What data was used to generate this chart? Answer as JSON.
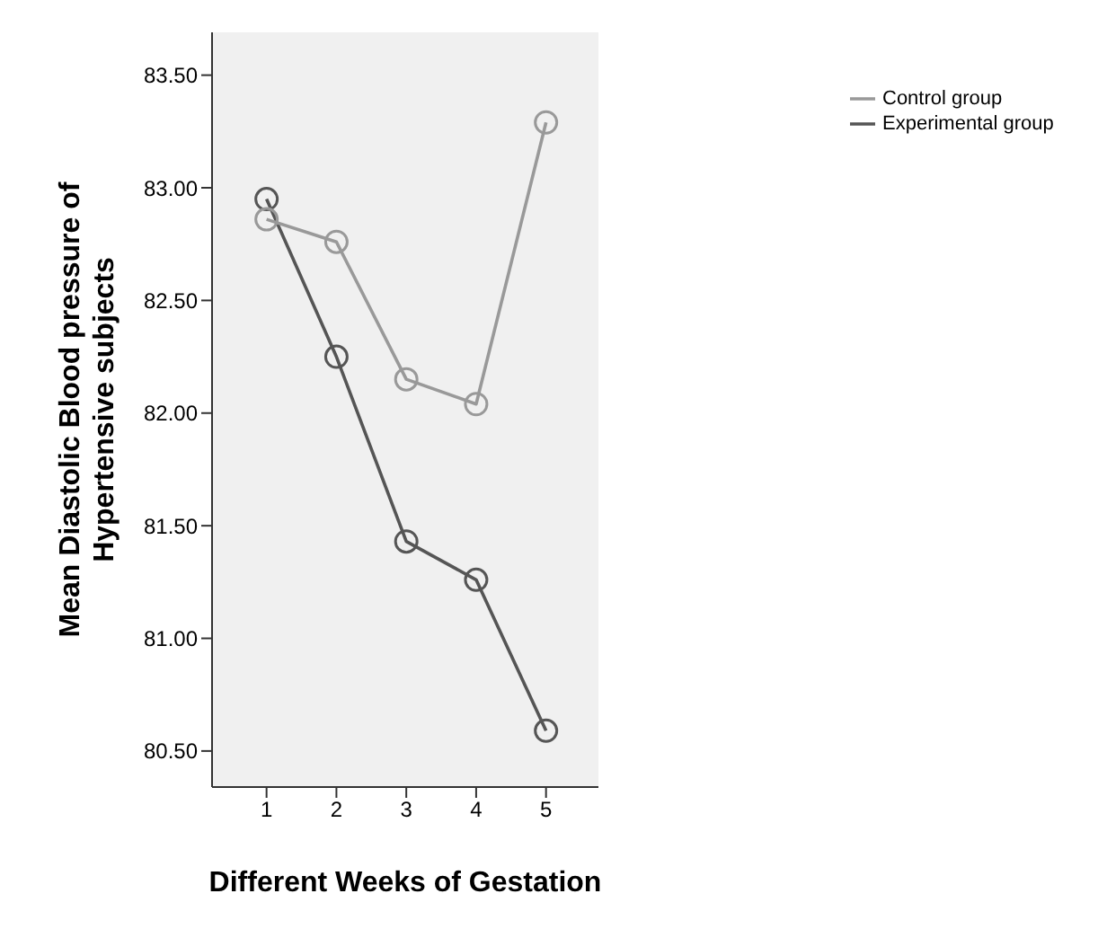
{
  "chart_data": {
    "type": "line",
    "xlabel": "Different Weeks of Gestation",
    "ylabel": "Mean Diastolic Blood pressure of Hypertensive subjects",
    "x": [
      1,
      2,
      3,
      4,
      5
    ],
    "series": [
      {
        "name": "Experimental group",
        "color": "#555555",
        "values": [
          82.95,
          82.25,
          81.43,
          81.26,
          80.59
        ]
      },
      {
        "name": "Control group",
        "color": "#999999",
        "values": [
          82.86,
          82.76,
          82.15,
          82.04,
          83.29
        ]
      }
    ],
    "xlim": [
      0.22,
      5.75
    ],
    "xticks": [
      1,
      2,
      3,
      4,
      5
    ],
    "ylim": [
      80.34,
      83.69
    ],
    "yticks": [
      {
        "value": 80.5,
        "label": "80.50"
      },
      {
        "value": 81,
        "label": "81.00"
      },
      {
        "value": 81.5,
        "label": "81.50"
      },
      {
        "value": 82,
        "label": "82.00"
      },
      {
        "value": 82.5,
        "label": "82.50"
      },
      {
        "value": 83,
        "label": "83.00"
      },
      {
        "value": 83.5,
        "label": "83.50"
      }
    ],
    "grid": false,
    "legend": "top right",
    "marker": "circle",
    "line_style": "solid"
  }
}
